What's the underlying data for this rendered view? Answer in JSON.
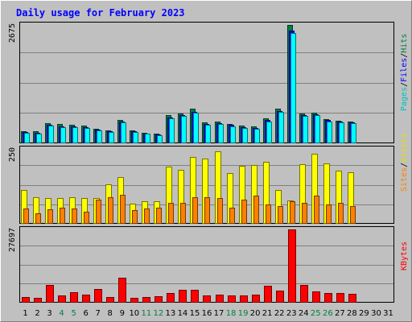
{
  "chart_data": {
    "type": "bar",
    "title": "Daily usage for February 2023",
    "x": [
      "1",
      "2",
      "3",
      "4",
      "5",
      "6",
      "7",
      "8",
      "9",
      "10",
      "11",
      "12",
      "13",
      "14",
      "15",
      "16",
      "17",
      "18",
      "19",
      "20",
      "21",
      "22",
      "23",
      "24",
      "25",
      "26",
      "27",
      "28",
      "29",
      "30",
      "31"
    ],
    "weekend_days": [
      4,
      5,
      11,
      12,
      18,
      19,
      25,
      26
    ],
    "panels": [
      {
        "id": "hits-files-pages",
        "max_label": "2675",
        "ylim": [
          0,
          2675
        ],
        "legend": [
          "Pages",
          "/",
          "Files",
          "/",
          "Hits"
        ],
        "series": [
          {
            "name": "Hits",
            "color": "#008040",
            "values": [
              275,
              270,
              460,
              430,
              420,
              400,
              330,
              300,
              530,
              290,
              240,
              220,
              640,
              680,
              780,
              470,
              490,
              440,
              400,
              380,
              560,
              780,
              2675,
              680,
              690,
              550,
              510,
              500,
              null,
              null,
              null
            ]
          },
          {
            "name": "Files",
            "color": "#0000ff",
            "values": [
              250,
              240,
              420,
              390,
              385,
              360,
              310,
              270,
              490,
              270,
              220,
              200,
              590,
              630,
              710,
              430,
              450,
              410,
              370,
              350,
              520,
              730,
              2540,
              640,
              650,
              520,
              490,
              470,
              null,
              null,
              null
            ]
          },
          {
            "name": "Pages",
            "color": "#00ffff",
            "values": [
              230,
              220,
              400,
              370,
              360,
              340,
              290,
              250,
              470,
              250,
              210,
              190,
              570,
              610,
              690,
              410,
              430,
              390,
              350,
              330,
              500,
              710,
              2500,
              620,
              630,
              500,
              470,
              450,
              null,
              null,
              null
            ]
          }
        ]
      },
      {
        "id": "visits-sites",
        "max_label": "250",
        "ylim": [
          0,
          250
        ],
        "legend": [
          "Sites",
          "/",
          "Visits"
        ],
        "series": [
          {
            "name": "Visits",
            "color": "#ffff00",
            "values": [
              113,
              88,
              86,
              86,
              88,
              86,
              86,
              131,
              155,
              68,
              75,
              75,
              190,
              180,
              222,
              218,
              243,
              170,
              194,
              195,
              206,
              112,
              78,
              198,
              235,
              201,
              178,
              171,
              null,
              null,
              null
            ]
          },
          {
            "name": "Sites",
            "color": "#ff8000",
            "values": [
              50,
              35,
              48,
              55,
              50,
              40,
              80,
              90,
              98,
              45,
              50,
              55,
              70,
              70,
              90,
              90,
              85,
              55,
              80,
              95,
              65,
              60,
              75,
              70,
              95,
              65,
              70,
              60,
              null,
              null,
              null
            ]
          }
        ]
      },
      {
        "id": "kbytes",
        "max_label": "27697",
        "ylim": [
          0,
          27697
        ],
        "legend": [
          "KBytes"
        ],
        "series": [
          {
            "name": "KBytes",
            "color": "#ff0000",
            "values": [
              2100,
              1950,
              6550,
              2850,
              3950,
              2950,
              5150,
              2250,
              9550,
              1950,
              2250,
              2350,
              3650,
              4850,
              4750,
              2850,
              3150,
              2750,
              2750,
              2950,
              6400,
              4600,
              27697,
              6800,
              4300,
              3650,
              3650,
              3450,
              null,
              null,
              null
            ]
          }
        ]
      }
    ]
  }
}
